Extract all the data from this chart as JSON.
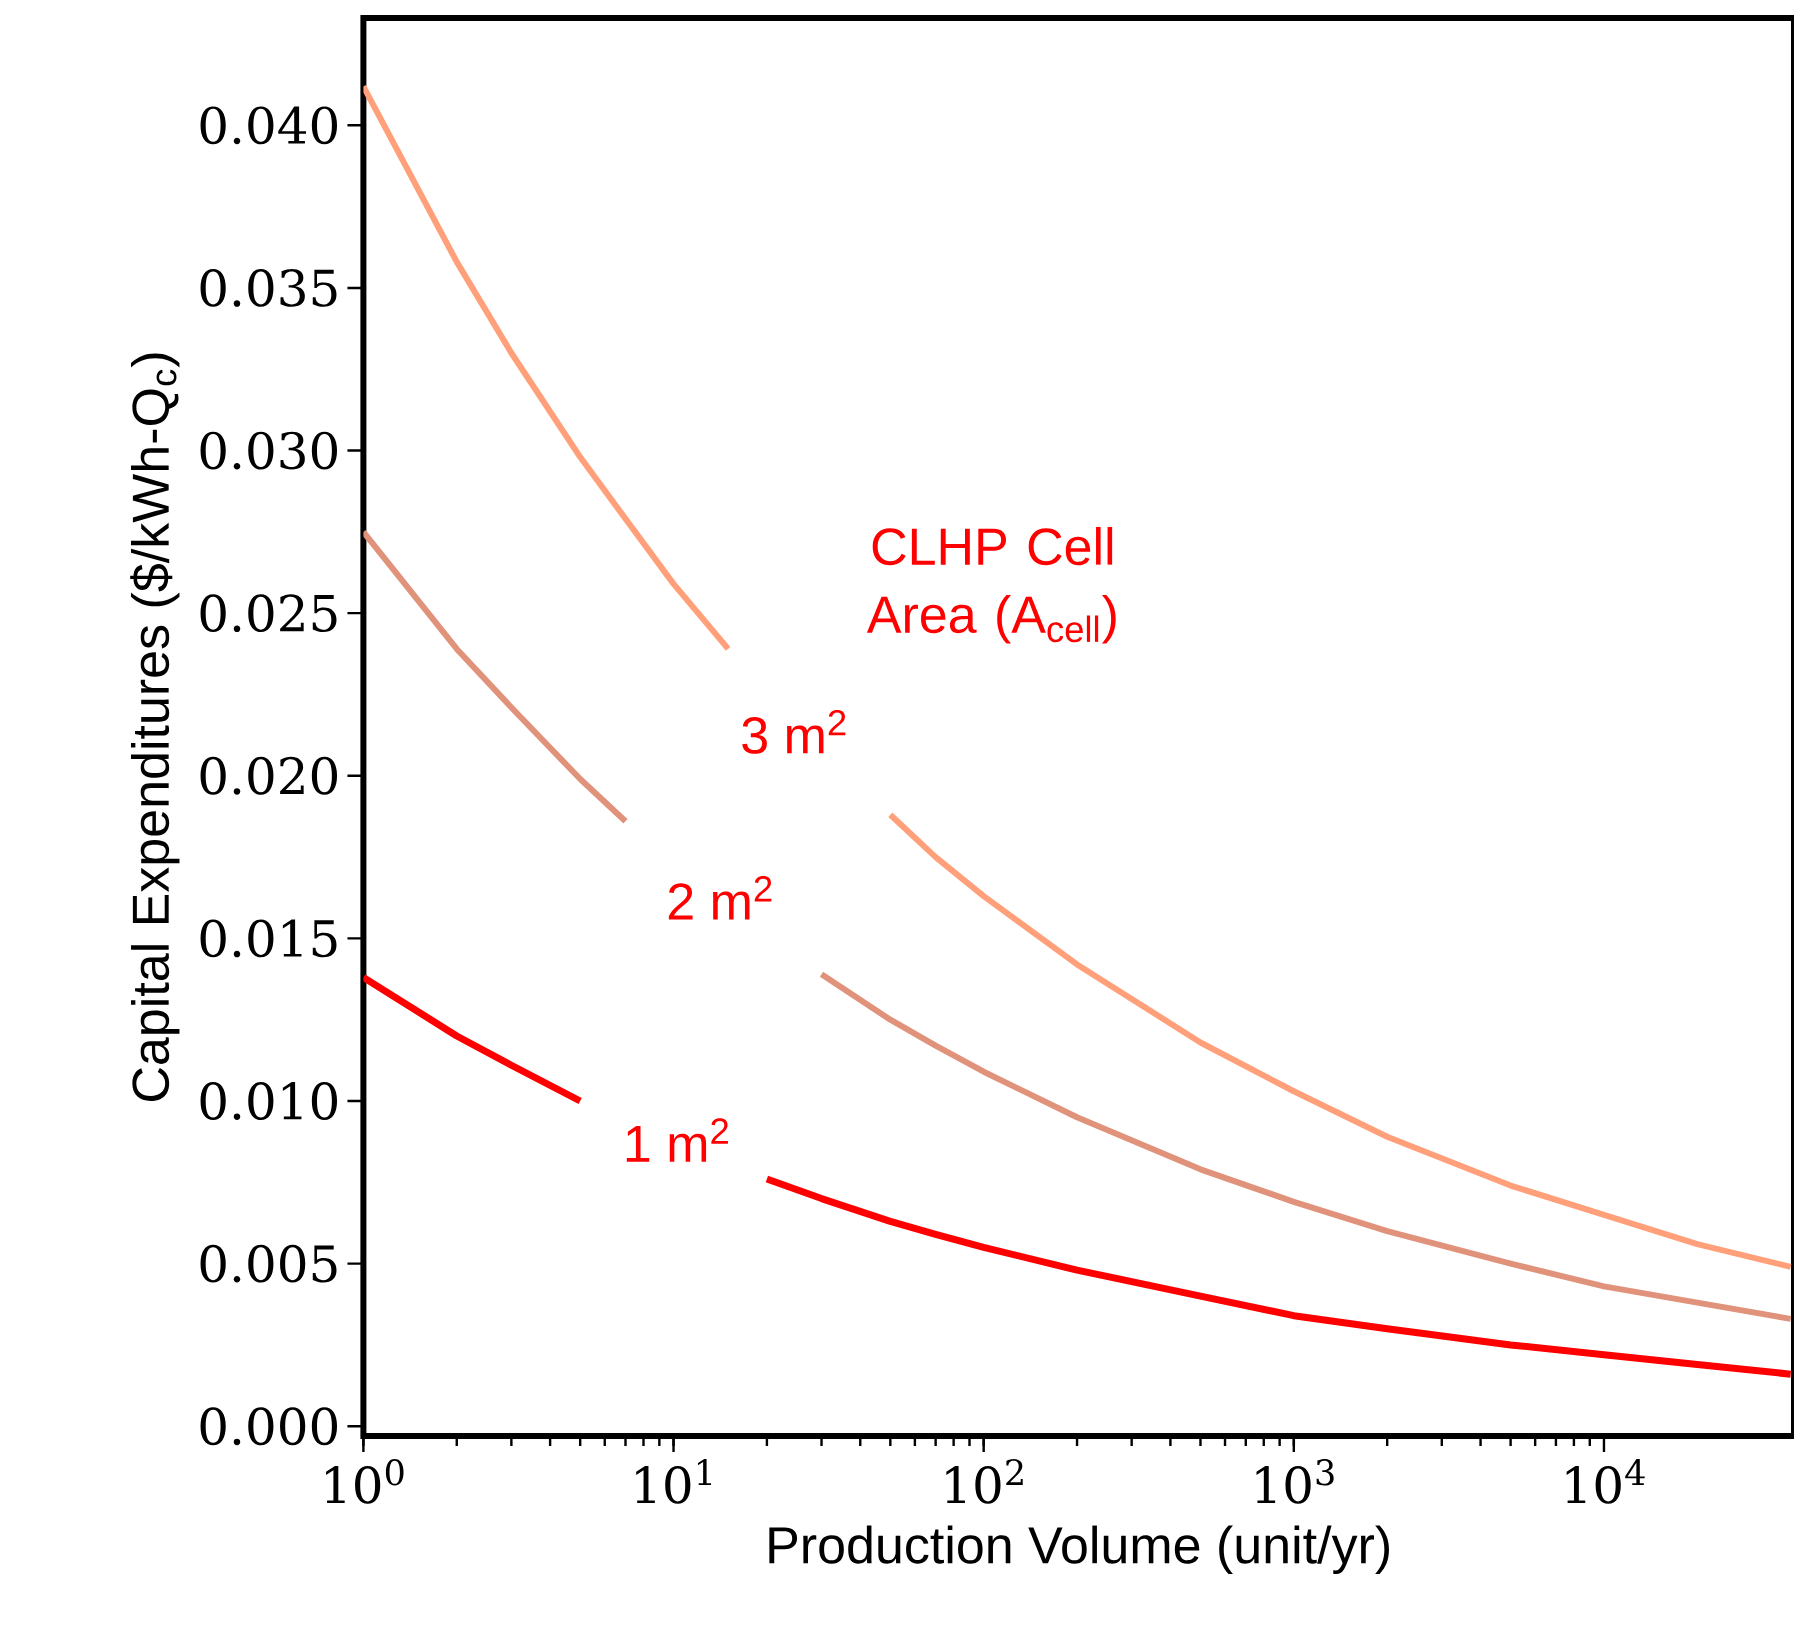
{
  "chart_data": {
    "type": "line",
    "xlabel": "Production Volume (unit/yr)",
    "ylabel": "Capital Expenditures ($/kWh-Q$_{c}$)",
    "legend_title": "CLHP Cell Area (A$_{cell}$)",
    "log": "x",
    "x": [
      1,
      2,
      3,
      5,
      7,
      10,
      15,
      20,
      30,
      50,
      70,
      100,
      200,
      500,
      1000,
      2000,
      5000,
      10000,
      20000,
      40000
    ],
    "series": [
      {
        "name": "1 m$^{2}$",
        "color": "#ff0000",
        "values": [
          0.0138,
          0.012,
          0.0111,
          0.01,
          null,
          null,
          null,
          0.0076,
          0.007,
          0.0063,
          0.0059,
          0.0055,
          0.0048,
          0.004,
          0.0034,
          0.003,
          0.0025,
          0.0022,
          0.0019,
          0.0016
        ]
      },
      {
        "name": "2 m$^{2}$",
        "color": "#e0937a",
        "values": [
          0.0275,
          0.0239,
          0.0221,
          0.0199,
          0.0186,
          null,
          null,
          null,
          0.0139,
          0.0125,
          0.0117,
          0.0109,
          0.0095,
          0.0079,
          0.0069,
          0.006,
          0.005,
          0.0043,
          0.0038,
          0.0033
        ]
      },
      {
        "name": "3 m$^{2}$",
        "color": "#ffa07a",
        "values": [
          0.0412,
          0.0358,
          0.033,
          0.0298,
          0.0279,
          0.0259,
          0.0239,
          null,
          null,
          0.0188,
          0.0175,
          0.0163,
          0.0142,
          0.0118,
          0.0103,
          0.0089,
          0.0074,
          0.0065,
          0.0056,
          0.0049
        ]
      }
    ],
    "xlim": [
      1,
      41000
    ],
    "ylim": [
      -0.0003,
      0.0433
    ],
    "xticks": [
      {
        "value": 1,
        "label": "10$^{0}$"
      },
      {
        "value": 10,
        "label": "10$^{1}$"
      },
      {
        "value": 100,
        "label": "10$^{2}$"
      },
      {
        "value": 1000,
        "label": "10$^{3}$"
      },
      {
        "value": 10000,
        "label": "10$^{4}$"
      }
    ],
    "yticks": [
      {
        "value": 0,
        "label": "0.000"
      },
      {
        "value": 0.005,
        "label": "0.005"
      },
      {
        "value": 0.01,
        "label": "0.010"
      },
      {
        "value": 0.015,
        "label": "0.015"
      },
      {
        "value": 0.02,
        "label": "0.020"
      },
      {
        "value": 0.025,
        "label": "0.025"
      },
      {
        "value": 0.03,
        "label": "0.030"
      },
      {
        "value": 0.035,
        "label": "0.035"
      },
      {
        "value": 0.04,
        "label": "0.040"
      }
    ],
    "grid": false,
    "legend": false,
    "marker": "none",
    "line_style": "solid"
  }
}
